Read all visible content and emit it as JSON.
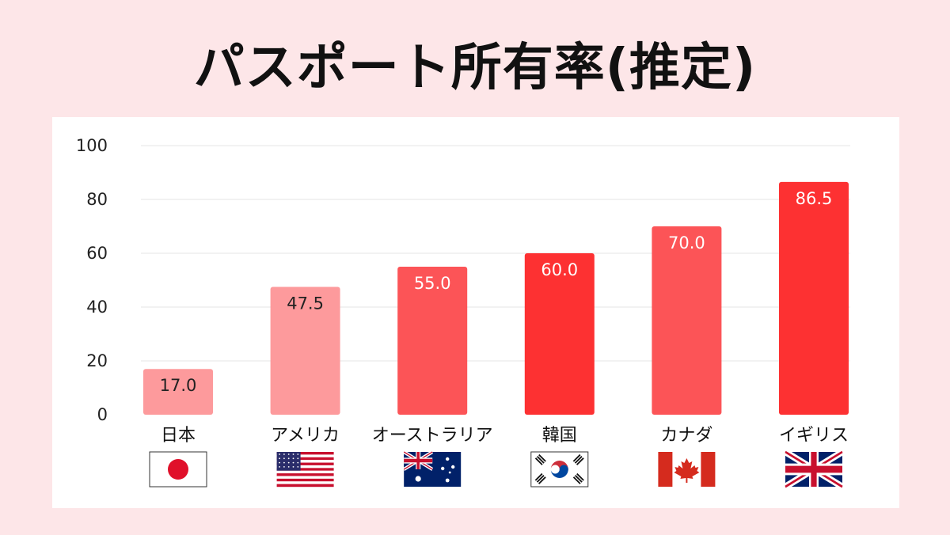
{
  "title": "パスポート所有率(推定)",
  "chart_data": {
    "type": "bar",
    "categories": [
      "日本",
      "アメリカ",
      "オーストラリア",
      "韓国",
      "カナダ",
      "イギリス"
    ],
    "values": [
      17.0,
      47.5,
      55.0,
      60.0,
      70.0,
      86.5
    ],
    "value_labels": [
      "17.0",
      "47.5",
      "55.0",
      "60.0",
      "70.0",
      "86.5"
    ],
    "flags": [
      "japan-flag",
      "usa-flag",
      "australia-flag",
      "korea-flag",
      "canada-flag",
      "uk-flag"
    ],
    "bar_colors": [
      "#fd9a9c",
      "#fd9a9c",
      "#fc5457",
      "#fd3132",
      "#fc5457",
      "#fd3132"
    ],
    "value_label_colors": [
      "#222222",
      "#222222",
      "#ffffff",
      "#ffffff",
      "#ffffff",
      "#ffffff"
    ],
    "y_ticks": [
      "0",
      "20",
      "40",
      "60",
      "80",
      "100"
    ],
    "ylim": [
      0,
      100
    ],
    "grid": true,
    "legend": "none"
  }
}
